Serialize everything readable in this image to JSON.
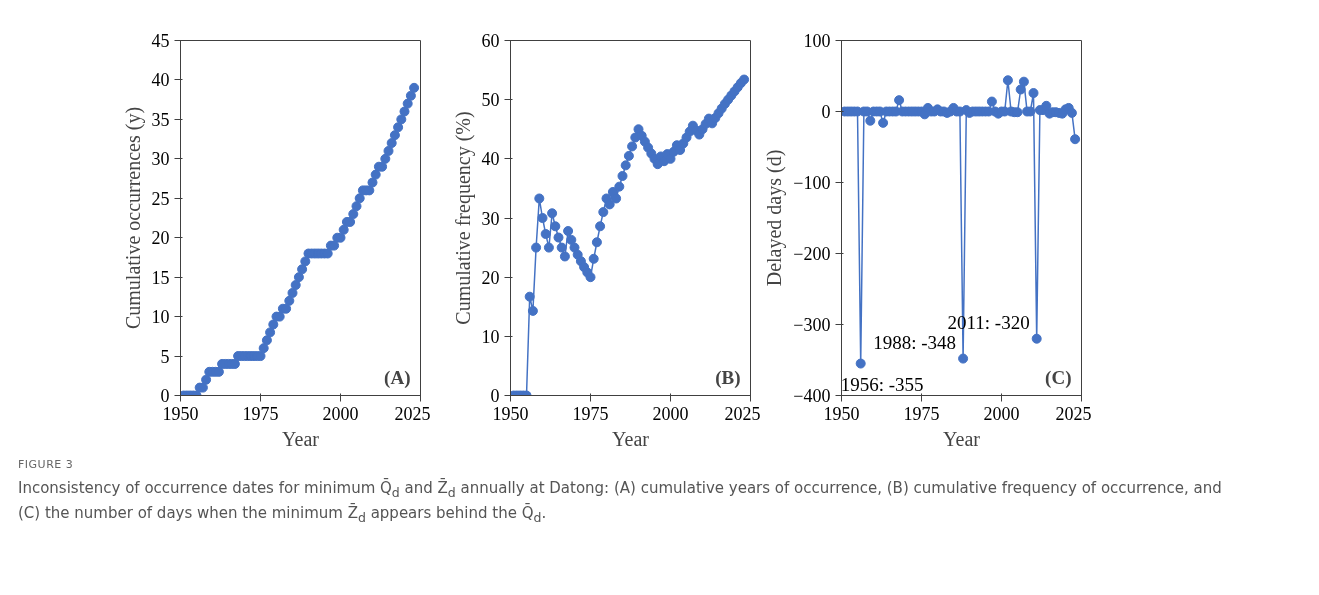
{
  "chart_data": [
    {
      "type": "scatter",
      "title": "(A)",
      "xlabel": "Year",
      "ylabel": "Cumulative occurrences (y)",
      "marker": "circle",
      "color": "#4472c4",
      "x": [
        1951,
        1952,
        1953,
        1954,
        1955,
        1956,
        1957,
        1958,
        1959,
        1960,
        1961,
        1962,
        1963,
        1964,
        1965,
        1966,
        1967,
        1968,
        1969,
        1970,
        1971,
        1972,
        1973,
        1974,
        1975,
        1976,
        1977,
        1978,
        1979,
        1980,
        1981,
        1982,
        1983,
        1984,
        1985,
        1986,
        1987,
        1988,
        1989,
        1990,
        1991,
        1992,
        1993,
        1994,
        1995,
        1996,
        1997,
        1998,
        1999,
        2000,
        2001,
        2002,
        2003,
        2004,
        2005,
        2006,
        2007,
        2008,
        2009,
        2010,
        2011,
        2012,
        2013,
        2014,
        2015,
        2016,
        2017,
        2018,
        2019,
        2020,
        2021,
        2022,
        2023
      ],
      "values": [
        0,
        0,
        0,
        0,
        0,
        1,
        1,
        2,
        3,
        3,
        3,
        3,
        4,
        4,
        4,
        4,
        4,
        5,
        5,
        5,
        5,
        5,
        5,
        5,
        5,
        6,
        7,
        8,
        9,
        10,
        10,
        11,
        11,
        12,
        13,
        14,
        15,
        16,
        17,
        18,
        18,
        18,
        18,
        18,
        18,
        18,
        19,
        19,
        20,
        20,
        21,
        22,
        22,
        23,
        24,
        25,
        26,
        26,
        26,
        27,
        28,
        29,
        29,
        30,
        31,
        32,
        33,
        34,
        35,
        36,
        37,
        38,
        39
      ],
      "xlim": [
        1950,
        2025
      ],
      "xticks": [
        1950,
        1975,
        2000,
        2025
      ],
      "ylim": [
        0,
        45
      ],
      "yticks": [
        0,
        5,
        10,
        15,
        20,
        25,
        30,
        35,
        40,
        45
      ]
    },
    {
      "type": "line",
      "title": "(B)",
      "xlabel": "Year",
      "ylabel": "Cumulative frequency (%)",
      "marker": "circle",
      "color": "#4472c4",
      "x": [
        1951,
        1952,
        1953,
        1954,
        1955,
        1956,
        1957,
        1958,
        1959,
        1960,
        1961,
        1962,
        1963,
        1964,
        1965,
        1966,
        1967,
        1968,
        1969,
        1970,
        1971,
        1972,
        1973,
        1974,
        1975,
        1976,
        1977,
        1978,
        1979,
        1980,
        1981,
        1982,
        1983,
        1984,
        1985,
        1986,
        1987,
        1988,
        1989,
        1990,
        1991,
        1992,
        1993,
        1994,
        1995,
        1996,
        1997,
        1998,
        1999,
        2000,
        2001,
        2002,
        2003,
        2004,
        2005,
        2006,
        2007,
        2008,
        2009,
        2010,
        2011,
        2012,
        2013,
        2014,
        2015,
        2016,
        2017,
        2018,
        2019,
        2020,
        2021,
        2022,
        2023
      ],
      "values": [
        0,
        0,
        0,
        0,
        0,
        16.7,
        14.3,
        25.0,
        33.3,
        30.0,
        27.3,
        25.0,
        30.8,
        28.6,
        26.7,
        25.0,
        23.5,
        27.8,
        26.3,
        25.0,
        23.8,
        22.7,
        21.7,
        20.8,
        20.0,
        23.1,
        25.9,
        28.6,
        31.0,
        33.3,
        32.3,
        34.4,
        33.3,
        35.3,
        37.1,
        38.9,
        40.5,
        42.1,
        43.6,
        45.0,
        43.9,
        42.9,
        41.9,
        40.9,
        40.0,
        39.1,
        40.4,
        39.6,
        40.8,
        40.0,
        41.2,
        42.3,
        41.5,
        42.6,
        43.6,
        44.6,
        45.6,
        44.8,
        44.1,
        45.0,
        45.9,
        46.8,
        46.0,
        46.9,
        47.7,
        48.5,
        49.3,
        50.0,
        50.7,
        51.4,
        52.1,
        52.8,
        53.4
      ],
      "xlim": [
        1950,
        2025
      ],
      "xticks": [
        1950,
        1975,
        2000,
        2025
      ],
      "ylim": [
        0,
        60
      ],
      "yticks": [
        0,
        10,
        20,
        30,
        40,
        50,
        60
      ]
    },
    {
      "type": "line",
      "title": "(C)",
      "xlabel": "Year",
      "ylabel": "Delayed days (d)",
      "marker": "circle",
      "color": "#4472c4",
      "x": [
        1951,
        1952,
        1953,
        1954,
        1955,
        1956,
        1957,
        1958,
        1959,
        1960,
        1961,
        1962,
        1963,
        1964,
        1965,
        1966,
        1967,
        1968,
        1969,
        1970,
        1971,
        1972,
        1973,
        1974,
        1975,
        1976,
        1977,
        1978,
        1979,
        1980,
        1981,
        1982,
        1983,
        1984,
        1985,
        1986,
        1987,
        1988,
        1989,
        1990,
        1991,
        1992,
        1993,
        1994,
        1995,
        1996,
        1997,
        1998,
        1999,
        2000,
        2001,
        2002,
        2003,
        2004,
        2005,
        2006,
        2007,
        2008,
        2009,
        2010,
        2011,
        2012,
        2013,
        2014,
        2015,
        2016,
        2017,
        2018,
        2019,
        2020,
        2021,
        2022,
        2023
      ],
      "values": [
        0,
        0,
        0,
        0,
        0,
        -355,
        0,
        0,
        -13,
        0,
        0,
        0,
        -16,
        0,
        0,
        0,
        0,
        16,
        0,
        0,
        0,
        0,
        0,
        0,
        0,
        -4,
        5,
        0,
        0,
        3,
        0,
        0,
        -2,
        0,
        5,
        0,
        0,
        -348,
        2,
        -2,
        0,
        0,
        0,
        0,
        0,
        0,
        14,
        0,
        -3,
        0,
        0,
        44,
        0,
        -1,
        -1,
        31,
        42,
        0,
        0,
        26,
        -320,
        2,
        2,
        8,
        -3,
        -1,
        -1,
        -2,
        -3,
        3,
        5,
        -2,
        -39
      ],
      "xlim": [
        1950,
        2025
      ],
      "xticks": [
        1950,
        1975,
        2000,
        2025
      ],
      "ylim": [
        -400,
        100
      ],
      "yticks": [
        -400,
        -300,
        -200,
        -100,
        0,
        100
      ],
      "annotations": [
        {
          "text": "1956: -355",
          "x": 1956,
          "y": -355
        },
        {
          "text": "1988: -348",
          "x": 1988,
          "y": -348
        },
        {
          "text": "2011: -320",
          "x": 2011,
          "y": -320
        }
      ]
    },
    {
      "type": "other",
      "title": "FIGURE 3",
      "annotations": [
        "Inconsistency of occurrence dates for minimum Q̄$_{d}$ and Z̄$_{d}$ annually at Datong: (A) cumulative years of occurrence, (B) cumulative frequency of occurrence, and (C) the number of days when the minimum Z̄$_{d}$ appears behind the Q̄$_{d}$."
      ]
    }
  ]
}
